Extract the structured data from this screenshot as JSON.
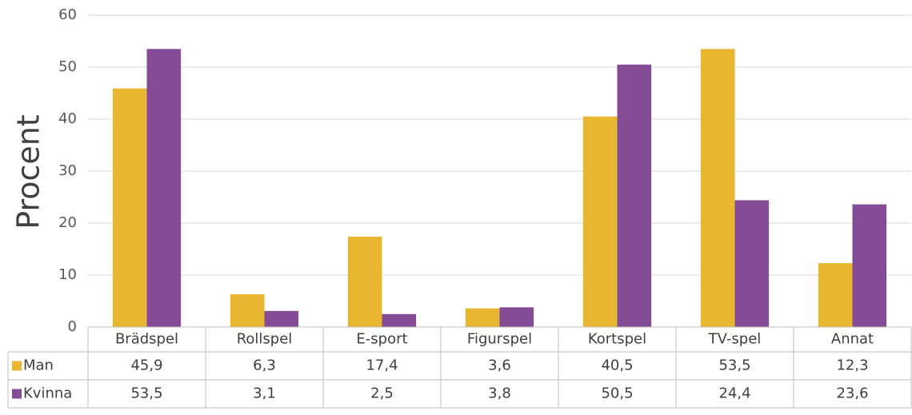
{
  "chart_data": {
    "type": "bar",
    "y_label": "Procent",
    "categories": [
      "Brädspel",
      "Rollspel",
      "E-sport",
      "Figurspel",
      "Kortspel",
      "TV-spel",
      "Annat"
    ],
    "series": [
      {
        "name": "Man",
        "color": "#e9b630",
        "values": [
          45.9,
          6.3,
          17.4,
          3.6,
          40.5,
          53.5,
          12.3
        ],
        "value_labels": [
          "45,9",
          "6,3",
          "17,4",
          "3,6",
          "40,5",
          "53,5",
          "12,3"
        ]
      },
      {
        "name": "Kvinna",
        "color": "#854c96",
        "values": [
          53.5,
          3.1,
          2.5,
          3.8,
          50.5,
          24.4,
          23.6
        ],
        "value_labels": [
          "53,5",
          "3,1",
          "2,5",
          "3,8",
          "50,5",
          "24,4",
          "23,6"
        ]
      }
    ],
    "ylim": [
      0,
      60
    ],
    "yticks": [
      0,
      10,
      20,
      30,
      40,
      50,
      60
    ],
    "grid": true
  }
}
